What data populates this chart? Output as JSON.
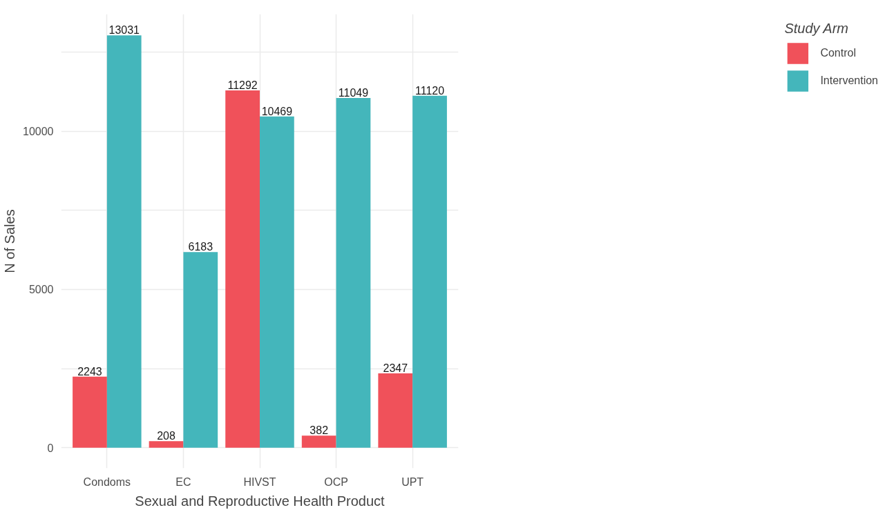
{
  "chart_data": {
    "type": "bar",
    "xlabel": "Sexual and Reproductive Health Product",
    "ylabel": "N of Sales",
    "legend_title": "Study Arm",
    "categories": [
      "Condoms",
      "EC",
      "HIVST",
      "OCP",
      "UPT"
    ],
    "series": [
      {
        "name": "Control",
        "color": "#f0515a",
        "values": [
          2243,
          208,
          11292,
          382,
          2347
        ]
      },
      {
        "name": "Intervention",
        "color": "#44b6bb",
        "values": [
          13031,
          6183,
          10469,
          11049,
          11120
        ]
      }
    ],
    "ylim": [
      -650,
      13700
    ],
    "yticks": [
      0,
      {
        "value": 2500,
        "label": null
      },
      5000,
      {
        "value": 7500,
        "label": null
      },
      10000,
      {
        "value": 12500,
        "label": null
      }
    ],
    "grid": true,
    "legend": "right",
    "data_labels": true
  }
}
